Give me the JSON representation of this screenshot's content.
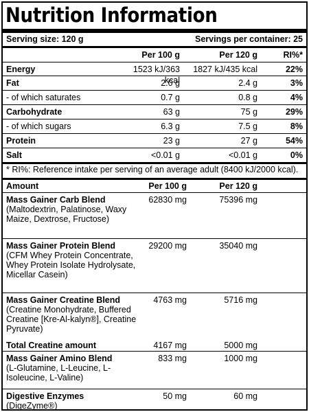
{
  "title": "Nutrition Information",
  "serving": {
    "size": "Serving size: 120 g",
    "per_container": "Servings per container: 25"
  },
  "nutrition": {
    "headers": {
      "per100": "Per 100 g",
      "per120": "Per 120 g",
      "ri": "RI%*"
    },
    "rows": [
      {
        "name": "Energy",
        "per100": "1523 kJ/363 kcal",
        "per120": "1827 kJ/435 kcal",
        "ri": "22%",
        "bold": true
      },
      {
        "name": "Fat",
        "per100": "2.0 g",
        "per120": "2.4 g",
        "ri": "3%",
        "bold": true
      },
      {
        "name": "- of which saturates",
        "per100": "0.7 g",
        "per120": "0.8 g",
        "ri": "4%",
        "bold": false
      },
      {
        "name": "Carbohydrate",
        "per100": "63 g",
        "per120": "75 g",
        "ri": "29%",
        "bold": true
      },
      {
        "name": "- of which sugars",
        "per100": "6.3 g",
        "per120": "7.5 g",
        "ri": "8%",
        "bold": false
      },
      {
        "name": "Protein",
        "per100": "23 g",
        "per120": "27 g",
        "ri": "54%",
        "bold": true
      },
      {
        "name": "Salt",
        "per100": "<0.01 g",
        "per120": "<0.01 g",
        "ri": "0%",
        "bold": true
      }
    ],
    "note": "* RI%: Reference intake per serving of an average adult (8400 kJ/2000 kcal)."
  },
  "amount": {
    "headers": {
      "name": "Amount",
      "per100": "Per 100 g",
      "per120": "Per 120 g"
    },
    "rows": [
      {
        "name": "Mass Gainer Carb Blend",
        "detail": "(Maltodextrin, Palatinose, Waxy Maize, Dextrose, Fructose)",
        "per100": "62830 mg",
        "per120": "75396 mg"
      },
      {
        "name": "Mass Gainer Protein Blend",
        "detail": "(CFM Whey Protein Concentrate, Whey Protein Isolate Hydrolysate, Micellar Casein)",
        "per100": "29200 mg",
        "per120": "35040 mg"
      },
      {
        "name": "Mass Gainer Creatine Blend",
        "detail": "(Creatine Monohydrate, Buffered Creatine [Kre-Al-kalyn®], Creatine Pyruvate)",
        "per100": "4763 mg",
        "per120": "5716 mg"
      },
      {
        "name": "Total Creatine amount",
        "detail": "",
        "per100": "4167 mg",
        "per120": "5000 mg"
      },
      {
        "name": "Mass Gainer Amino Blend",
        "detail": "(L-Glutamine, L-Leucine, L-Isoleucine, L-Valine)",
        "per100": "833 mg",
        "per120": "1000 mg"
      },
      {
        "name": "Digestive Enzymes",
        "detail": "(DigeZyme®)",
        "per100": "50 mg",
        "per120": "60 mg"
      }
    ]
  }
}
